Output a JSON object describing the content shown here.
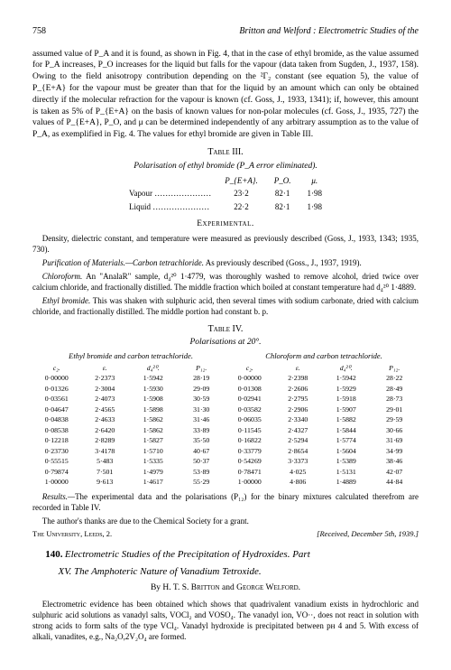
{
  "header": {
    "page_number": "758",
    "running_title": "Britton and Welford : Electrometric Studies of the"
  },
  "intro_para": "assumed value of P_A and it is found, as shown in Fig. 4, that in the case of ethyl bromide, as the value assumed for P_A increases, P_O increases for the liquid but falls for the vapour (data taken from Sugden, J., 1937, 158). Owing to the field anisotropy contribution depending on the ²Γ₂ constant (see equation 5), the value of P_{E+A} for the vapour must be greater than that for the liquid by an amount which can only be obtained directly if the molecular refraction for the vapour is known (cf. Goss, J., 1933, 1341); if, however, this amount is taken as 5% of P_{E+A} on the basis of known values for non-polar molecules (cf. Goss, J., 1935, 727) the values of P_{E+A}, P_O, and μ can be determined independently of any arbitrary assumption as to the value of P_A, as exemplified in Fig. 4. The values for ethyl bromide are given in Table III.",
  "table3": {
    "caption": "Table III.",
    "subtitle": "Polarisation of ethyl bromide (P_A error eliminated).",
    "columns": [
      "",
      "P_{E+A}.",
      "P_O.",
      "μ."
    ],
    "rows": [
      [
        "Vapour …………………",
        "23·2",
        "82·1",
        "1·98"
      ],
      [
        "Liquid …………………",
        "22·2",
        "82·1",
        "1·98"
      ]
    ]
  },
  "experimental": {
    "heading": "Experimental.",
    "para1": "Density, dielectric constant, and temperature were measured as previously described (Goss, J., 1933, 1343; 1935, 730).",
    "para2_label": "Purification of Materials.—Carbon tetrachloride.",
    "para2": " As previously described (Goss., J., 1937, 1919).",
    "para3_label": "Chloroform.",
    "para3": " An \"AnalaR\" sample, d₄²⁰ 1·4779, was thoroughly washed to remove alcohol, dried twice over calcium chloride, and fractionally distilled. The middle fraction which boiled at constant temperature had d₄²⁰ 1·4889.",
    "para4_label": "Ethyl bromide.",
    "para4": " This was shaken with sulphuric acid, then several times with sodium carbonate, dried with calcium chloride, and fractionally distilled. The middle portion had constant b. p."
  },
  "table4": {
    "caption": "Table IV.",
    "subtitle": "Polarisations at 20°.",
    "left_header": "Ethyl bromide and carbon tetrachloride.",
    "right_header": "Chloroform and carbon tetrachloride.",
    "columns": [
      "c₂.",
      "ε.",
      "d₄²⁰.",
      "P₁₂.",
      "c₂.",
      "ε.",
      "d₄²⁰.",
      "P₁₂."
    ],
    "rows": [
      [
        "0·00000",
        "2·2373",
        "1·5942",
        "28·19",
        "0·00000",
        "2·2398",
        "1·5942",
        "28·22"
      ],
      [
        "0·01326",
        "2·3004",
        "1·5930",
        "29·09",
        "0·01308",
        "2·2606",
        "1·5929",
        "28·49"
      ],
      [
        "0·03561",
        "2·4073",
        "1·5908",
        "30·59",
        "0·02941",
        "2·2795",
        "1·5918",
        "28·73"
      ],
      [
        "0·04647",
        "2·4565",
        "1·5898",
        "31·30",
        "0·03582",
        "2·2906",
        "1·5907",
        "29·01"
      ],
      [
        "0·04838",
        "2·4633",
        "1·5862",
        "31·46",
        "0·06035",
        "2·3340",
        "1·5882",
        "29·59"
      ],
      [
        "0·08538",
        "2·6420",
        "1·5862",
        "33·89",
        "0·11545",
        "2·4327",
        "1·5844",
        "30·66"
      ],
      [
        "0·12218",
        "2·8289",
        "1·5827",
        "35·50",
        "0·16822",
        "2·5294",
        "1·5774",
        "31·69"
      ],
      [
        "0·23730",
        "3·4178",
        "1·5710",
        "40·67",
        "0·33779",
        "2·8654",
        "1·5604",
        "34·99"
      ],
      [
        "0·55515",
        "5·483",
        "1·5335",
        "50·37",
        "0·54269",
        "3·3373",
        "1·5389",
        "38·46"
      ],
      [
        "0·79874",
        "7·501",
        "1·4979",
        "53·89",
        "0·78471",
        "4·025",
        "1·5131",
        "42·07"
      ],
      [
        "1·00000",
        "9·613",
        "1·4617",
        "55·29",
        "1·00000",
        "4·806",
        "1·4889",
        "44·84"
      ]
    ]
  },
  "results_para_label": "Results.—",
  "results_para": "The experimental data and the polarisations (P₁₂) for the binary mixtures calculated therefrom are recorded in Table IV.",
  "thanks": "The author's thanks are due to the Chemical Society for a grant.",
  "signoff": {
    "left": "The University, Leeds, 2.",
    "right": "[Received, December 5th, 1939.]"
  },
  "article2": {
    "number": "140.",
    "title_line1": "Electrometric Studies of the Precipitation of Hydroxides. Part",
    "title_line2": "XV. The Amphoteric Nature of Vanadium Tetroxide.",
    "byline_by": "By ",
    "author1": "H. T. S. Britton",
    "byline_and": " and ",
    "author2": "George Welford.",
    "abstract": "Electrometric evidence has been obtained which shows that quadrivalent vanadium exists in hydrochloric and sulphuric acid solutions as vanadyl salts, VOCl₂ and VOSO₄. The vanadyl ion, VO··, does not react in solution with strong acids to form salts of the type VCl₄. Vanadyl hydroxide is precipitated between pн 4 and 5. With excess of alkali, vanadites, e.g., Na₂O,2V₂O₄ are formed."
  }
}
